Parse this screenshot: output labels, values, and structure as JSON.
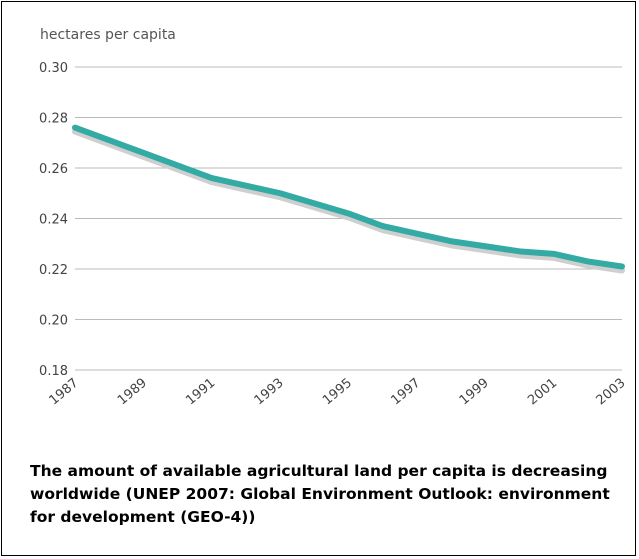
{
  "chart_data": {
    "type": "line",
    "ylabel": "hectares per capita",
    "xlabel": "",
    "title": "",
    "x": [
      1987,
      1988,
      1989,
      1990,
      1991,
      1992,
      1993,
      1994,
      1995,
      1996,
      1997,
      1998,
      1999,
      2000,
      2001,
      2002,
      2003
    ],
    "series": [
      {
        "name": "",
        "values": [
          0.276,
          0.271,
          0.266,
          0.261,
          0.256,
          0.253,
          0.25,
          0.246,
          0.242,
          0.237,
          0.234,
          0.231,
          0.229,
          0.227,
          0.226,
          0.223,
          0.221
        ],
        "color": "#33aaa4"
      }
    ],
    "x_ticks": [
      "1987",
      "1989",
      "1991",
      "1993",
      "1995",
      "1997",
      "1999",
      "2001",
      "2003"
    ],
    "y_ticks": [
      "0.18",
      "0.20",
      "0.22",
      "0.24",
      "0.26",
      "0.28",
      "0.30"
    ],
    "xlim": [
      1987,
      2003
    ],
    "ylim": [
      0.18,
      0.3
    ],
    "grid": true,
    "grid_color": "#bbbbbb",
    "shadow_color": "#cfcfcf"
  },
  "caption": "The amount of available agricultural land per capita is decreasing worldwide (UNEP 2007: Global Environment Outlook: environment for development (GEO-4))"
}
